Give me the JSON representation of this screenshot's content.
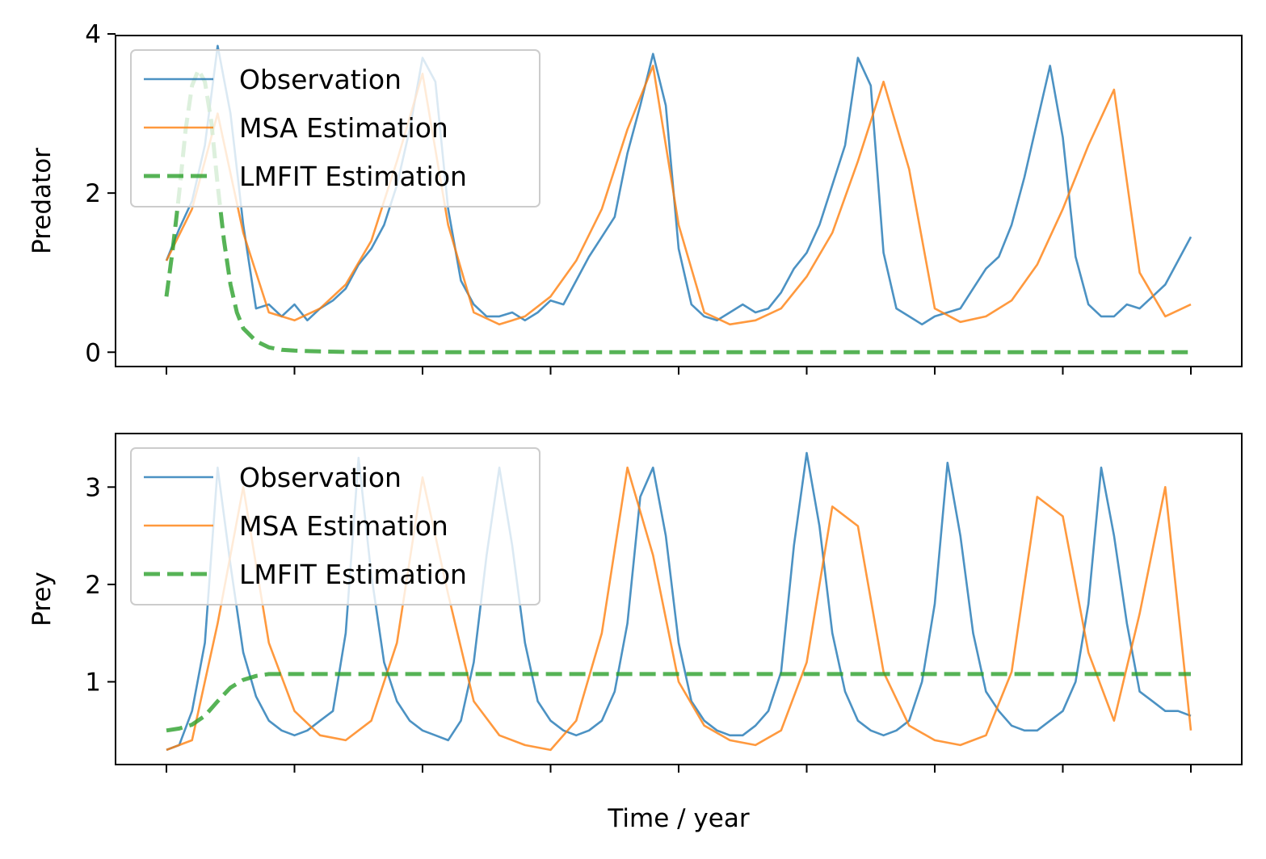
{
  "chart_data": [
    {
      "type": "line",
      "ylabel": "Predator",
      "xlabel": "",
      "ylim": [
        -0.18,
        3.98
      ],
      "yticks": [
        0,
        2,
        4
      ],
      "x_ticks_count": 9,
      "grid": false,
      "legend": {
        "placement": "top-left",
        "entries": [
          "Observation",
          "MSA Estimation",
          "LMFIT Estimation"
        ]
      },
      "series": [
        {
          "name": "Observation",
          "color": "#1f77b4",
          "style": "solid",
          "x": [
            0.0,
            0.1,
            0.2,
            0.3,
            0.4,
            0.5,
            0.6,
            0.7,
            0.8,
            0.9,
            1.0,
            1.1,
            1.2,
            1.3,
            1.4,
            1.5,
            1.6,
            1.7,
            1.8,
            1.9,
            2.0,
            2.1,
            2.2,
            2.3,
            2.4,
            2.5,
            2.6,
            2.7,
            2.8,
            2.9,
            3.0,
            3.1,
            3.2,
            3.3,
            3.4,
            3.5,
            3.6,
            3.7,
            3.8,
            3.9,
            4.0,
            4.1,
            4.2,
            4.3,
            4.4,
            4.5,
            4.6,
            4.7,
            4.8,
            4.9,
            5.0,
            5.1,
            5.2,
            5.3,
            5.4,
            5.5,
            5.6,
            5.7,
            5.8,
            5.9,
            6.0,
            6.1,
            6.2,
            6.3,
            6.4,
            6.5,
            6.6,
            6.7,
            6.8,
            6.9,
            7.0,
            7.1,
            7.2,
            7.3,
            7.4,
            7.5,
            7.6,
            7.7,
            7.8,
            7.9,
            8.0
          ],
          "y": [
            1.15,
            1.55,
            1.9,
            2.6,
            3.85,
            3.0,
            1.6,
            0.55,
            0.6,
            0.45,
            0.6,
            0.4,
            0.55,
            0.65,
            0.8,
            1.1,
            1.3,
            1.6,
            2.1,
            2.8,
            3.7,
            3.4,
            1.8,
            0.9,
            0.6,
            0.45,
            0.45,
            0.5,
            0.4,
            0.5,
            0.65,
            0.6,
            0.9,
            1.2,
            1.45,
            1.7,
            2.5,
            3.1,
            3.75,
            3.1,
            1.3,
            0.6,
            0.45,
            0.4,
            0.5,
            0.6,
            0.5,
            0.55,
            0.75,
            1.05,
            1.25,
            1.6,
            2.1,
            2.6,
            3.7,
            3.35,
            1.25,
            0.55,
            0.45,
            0.35,
            0.45,
            0.5,
            0.55,
            0.8,
            1.05,
            1.2,
            1.6,
            2.2,
            2.9,
            3.6,
            2.7,
            1.2,
            0.6,
            0.45,
            0.45,
            0.6,
            0.55,
            0.7,
            0.85,
            1.15,
            1.45
          ]
        },
        {
          "name": "MSA Estimation",
          "color": "#ff7f0e",
          "style": "solid",
          "x": [
            0.0,
            0.2,
            0.4,
            0.6,
            0.8,
            1.0,
            1.2,
            1.4,
            1.6,
            1.8,
            2.0,
            2.2,
            2.4,
            2.6,
            2.8,
            3.0,
            3.2,
            3.4,
            3.6,
            3.8,
            4.0,
            4.2,
            4.4,
            4.6,
            4.8,
            5.0,
            5.2,
            5.4,
            5.6,
            5.8,
            6.0,
            6.2,
            6.4,
            6.6,
            6.8,
            7.0,
            7.2,
            7.4,
            7.6,
            7.8,
            8.0
          ],
          "y": [
            1.15,
            1.8,
            3.0,
            1.5,
            0.5,
            0.4,
            0.55,
            0.85,
            1.4,
            2.4,
            3.5,
            1.6,
            0.5,
            0.35,
            0.45,
            0.7,
            1.15,
            1.8,
            2.8,
            3.6,
            1.6,
            0.5,
            0.35,
            0.4,
            0.55,
            0.95,
            1.5,
            2.4,
            3.4,
            2.3,
            0.55,
            0.38,
            0.45,
            0.65,
            1.1,
            1.8,
            2.6,
            3.3,
            1.0,
            0.45,
            0.6
          ]
        },
        {
          "name": "LMFIT Estimation",
          "color": "#2ca02c",
          "style": "dashed",
          "x": [
            0.0,
            0.05,
            0.1,
            0.15,
            0.2,
            0.25,
            0.3,
            0.35,
            0.4,
            0.45,
            0.5,
            0.55,
            0.6,
            0.7,
            0.8,
            0.9,
            1.0,
            1.2,
            1.5,
            2.0,
            3.0,
            4.0,
            5.0,
            6.0,
            7.0,
            8.0
          ],
          "y": [
            0.7,
            1.3,
            2.0,
            2.8,
            3.35,
            3.55,
            3.4,
            2.9,
            2.1,
            1.4,
            0.85,
            0.5,
            0.3,
            0.14,
            0.06,
            0.03,
            0.02,
            0.01,
            0.0,
            0.0,
            0.0,
            0.0,
            0.0,
            0.0,
            0.0,
            0.0
          ]
        }
      ]
    },
    {
      "type": "line",
      "ylabel": "Prey",
      "xlabel": "Time / year",
      "ylim": [
        0.15,
        3.55
      ],
      "yticks": [
        1,
        2,
        3
      ],
      "x_ticks_count": 9,
      "grid": false,
      "legend": {
        "placement": "top-left",
        "entries": [
          "Observation",
          "MSA Estimation",
          "LMFIT Estimation"
        ]
      },
      "series": [
        {
          "name": "Observation",
          "color": "#1f77b4",
          "style": "solid",
          "x": [
            0.0,
            0.1,
            0.2,
            0.3,
            0.4,
            0.5,
            0.6,
            0.7,
            0.8,
            0.9,
            1.0,
            1.1,
            1.2,
            1.3,
            1.4,
            1.5,
            1.6,
            1.7,
            1.8,
            1.9,
            2.0,
            2.1,
            2.2,
            2.3,
            2.4,
            2.5,
            2.6,
            2.7,
            2.8,
            2.9,
            3.0,
            3.1,
            3.2,
            3.3,
            3.4,
            3.5,
            3.6,
            3.7,
            3.8,
            3.9,
            4.0,
            4.1,
            4.2,
            4.3,
            4.4,
            4.5,
            4.6,
            4.7,
            4.8,
            4.9,
            5.0,
            5.1,
            5.2,
            5.3,
            5.4,
            5.5,
            5.6,
            5.7,
            5.8,
            5.9,
            6.0,
            6.1,
            6.2,
            6.3,
            6.4,
            6.5,
            6.6,
            6.7,
            6.8,
            6.9,
            7.0,
            7.1,
            7.2,
            7.3,
            7.4,
            7.5,
            7.6,
            7.7,
            7.8,
            7.9,
            8.0
          ],
          "y": [
            0.3,
            0.35,
            0.7,
            1.4,
            3.2,
            2.2,
            1.3,
            0.85,
            0.6,
            0.5,
            0.45,
            0.5,
            0.6,
            0.7,
            1.5,
            3.3,
            2.1,
            1.2,
            0.8,
            0.6,
            0.5,
            0.45,
            0.4,
            0.6,
            1.2,
            2.3,
            3.2,
            2.4,
            1.4,
            0.8,
            0.6,
            0.5,
            0.45,
            0.5,
            0.6,
            0.9,
            1.6,
            2.9,
            3.2,
            2.5,
            1.4,
            0.8,
            0.6,
            0.5,
            0.45,
            0.45,
            0.55,
            0.7,
            1.1,
            2.4,
            3.35,
            2.6,
            1.5,
            0.9,
            0.6,
            0.5,
            0.45,
            0.5,
            0.6,
            1.0,
            1.8,
            3.25,
            2.5,
            1.5,
            0.9,
            0.7,
            0.55,
            0.5,
            0.5,
            0.6,
            0.7,
            1.0,
            1.8,
            3.2,
            2.5,
            1.6,
            0.9,
            0.8,
            0.7,
            0.7,
            0.65
          ]
        },
        {
          "name": "MSA Estimation",
          "color": "#ff7f0e",
          "style": "solid",
          "x": [
            0.0,
            0.2,
            0.4,
            0.6,
            0.8,
            1.0,
            1.2,
            1.4,
            1.6,
            1.8,
            2.0,
            2.2,
            2.4,
            2.6,
            2.8,
            3.0,
            3.2,
            3.4,
            3.6,
            3.8,
            4.0,
            4.2,
            4.4,
            4.6,
            4.8,
            5.0,
            5.2,
            5.4,
            5.6,
            5.8,
            6.0,
            6.2,
            6.4,
            6.6,
            6.8,
            7.0,
            7.2,
            7.4,
            7.6,
            7.8,
            8.0
          ],
          "y": [
            0.3,
            0.4,
            1.6,
            3.0,
            1.4,
            0.7,
            0.45,
            0.4,
            0.6,
            1.4,
            3.1,
            1.9,
            0.8,
            0.45,
            0.35,
            0.3,
            0.6,
            1.5,
            3.2,
            2.3,
            1.0,
            0.55,
            0.4,
            0.35,
            0.5,
            1.2,
            2.8,
            2.6,
            1.1,
            0.55,
            0.4,
            0.35,
            0.45,
            1.1,
            2.9,
            2.7,
            1.3,
            0.6,
            1.7,
            3.0,
            0.5
          ]
        },
        {
          "name": "LMFIT Estimation",
          "color": "#2ca02c",
          "style": "dashed",
          "x": [
            0.0,
            0.1,
            0.2,
            0.3,
            0.4,
            0.5,
            0.6,
            0.7,
            0.8,
            0.9,
            1.0,
            1.2,
            1.5,
            2.0,
            3.0,
            4.0,
            5.0,
            6.0,
            7.0,
            8.0
          ],
          "y": [
            0.5,
            0.52,
            0.56,
            0.65,
            0.8,
            0.94,
            1.02,
            1.06,
            1.08,
            1.08,
            1.08,
            1.08,
            1.08,
            1.08,
            1.08,
            1.08,
            1.08,
            1.08,
            1.08,
            1.08
          ]
        }
      ]
    }
  ]
}
